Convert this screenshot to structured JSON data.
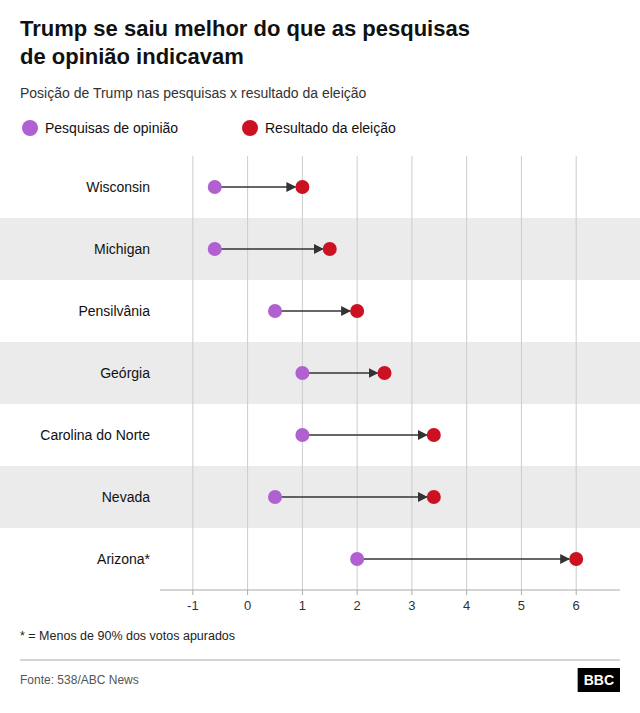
{
  "chart_data": {
    "type": "dumbbell",
    "orientation": "horizontal",
    "title": "Trump se saiu melhor do que as pesquisas\nde opinião indicavam",
    "subtitle": "Posição de Trump nas pesquisas x resultado da eleição",
    "categories": [
      "Wisconsin",
      "Michigan",
      "Pensilvânia",
      "Geórgia",
      "Carolina do Norte",
      "Nevada",
      "Arizona*"
    ],
    "series": [
      {
        "name": "Pesquisas de opinião",
        "color": "#b060d0",
        "values": [
          -0.6,
          -0.6,
          0.5,
          1.0,
          1.0,
          0.5,
          2.0
        ]
      },
      {
        "name": "Resultado da eleição",
        "color": "#cc1122",
        "values": [
          1.0,
          1.5,
          2.0,
          2.5,
          3.4,
          3.4,
          6.0
        ]
      }
    ],
    "xlim": [
      -1.6,
      6.8
    ],
    "xticks": [
      -1,
      0,
      1,
      2,
      3,
      4,
      5,
      6
    ],
    "grid": true,
    "legend": "top",
    "annotations": [
      "* = Menos de 90% dos votos apurados",
      "Fonte: 538/ABC News",
      "BBC"
    ]
  }
}
